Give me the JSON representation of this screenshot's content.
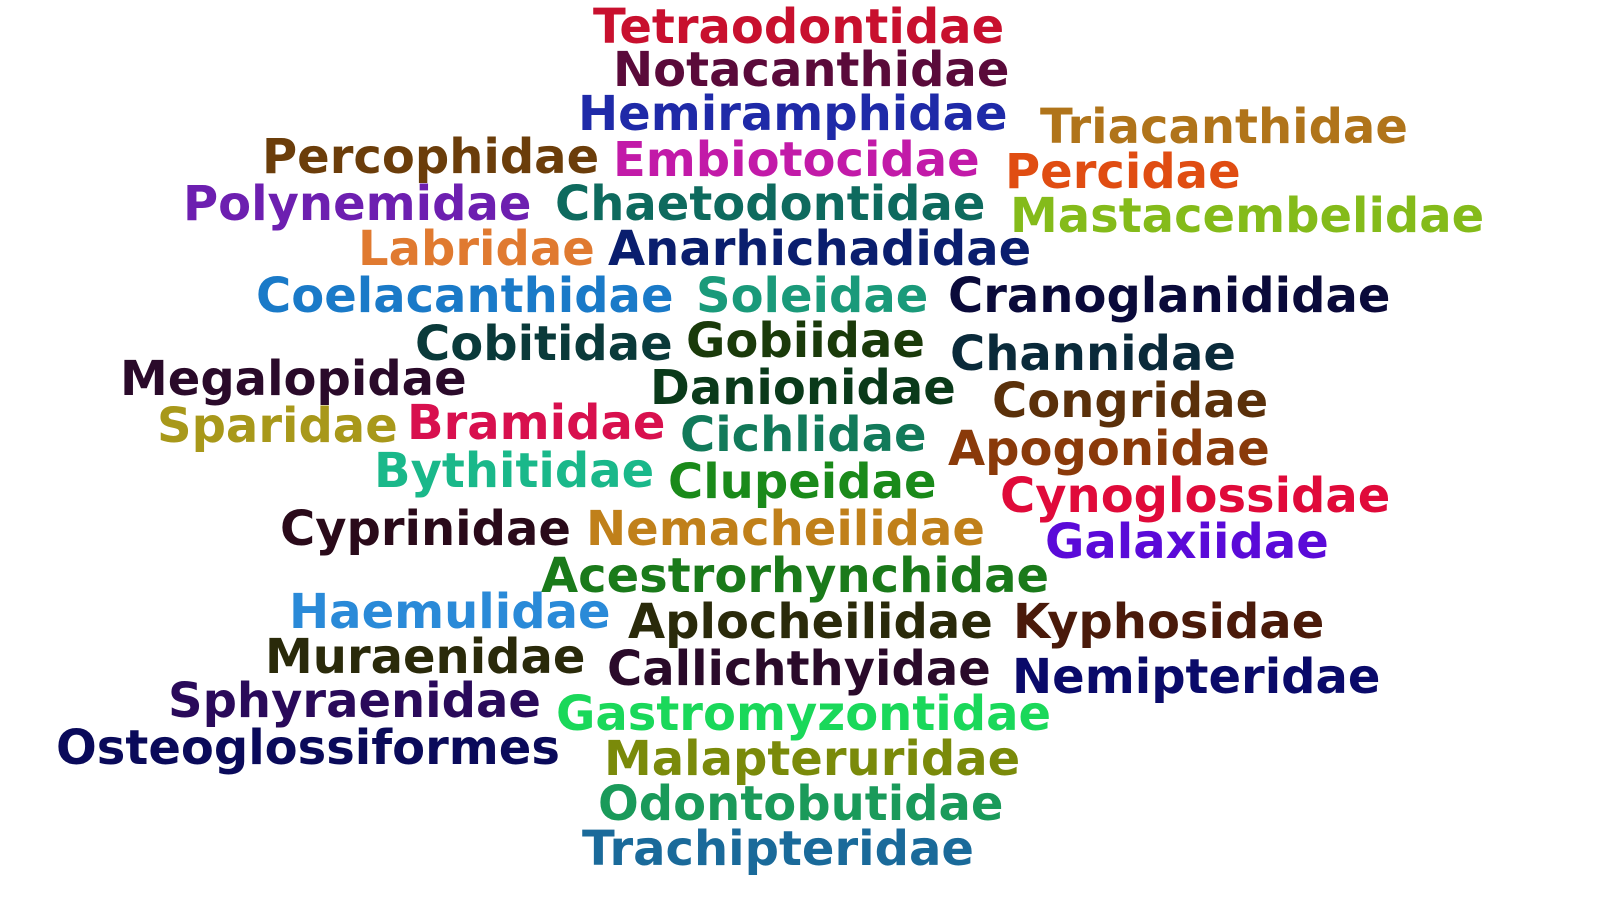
{
  "words": [
    {
      "text": "Tetraodontidae",
      "color": "#c8102e"
    },
    {
      "text": "Notacanthidae",
      "color": "#5a0a3a"
    },
    {
      "text": "Hemiramphidae",
      "color": "#1f2aa8"
    },
    {
      "text": "Triacanthidae",
      "color": "#b0741a"
    },
    {
      "text": "Percophidae",
      "color": "#6b3d0a"
    },
    {
      "text": "Embiotocidae",
      "color": "#c21aa8"
    },
    {
      "text": "Percidae",
      "color": "#e04d12"
    },
    {
      "text": "Polynemidae",
      "color": "#6d1fb0"
    },
    {
      "text": "Chaetodontidae",
      "color": "#0e6a5e"
    },
    {
      "text": "Mastacembelidae",
      "color": "#84bb1a"
    },
    {
      "text": "Labridae",
      "color": "#e07a30"
    },
    {
      "text": "Anarhichadidae",
      "color": "#0a1e6e"
    },
    {
      "text": "Coelacanthidae",
      "color": "#1a7ac8"
    },
    {
      "text": "Soleidae",
      "color": "#1a9a7a"
    },
    {
      "text": "Cranoglanididae",
      "color": "#0a0a3a"
    },
    {
      "text": "Cobitidae",
      "color": "#0a3a3a"
    },
    {
      "text": "Gobiidae",
      "color": "#1a3a0a"
    },
    {
      "text": "Channidae",
      "color": "#0a2a3a"
    },
    {
      "text": "Megalopidae",
      "color": "#2a0a2a"
    },
    {
      "text": "Danionidae",
      "color": "#0a3a1a"
    },
    {
      "text": "Congridae",
      "color": "#5a300a"
    },
    {
      "text": "Sparidae",
      "color": "#a8981a"
    },
    {
      "text": "Bramidae",
      "color": "#d8104e"
    },
    {
      "text": "Cichlidae",
      "color": "#127a5a"
    },
    {
      "text": "Apogonidae",
      "color": "#8a3a0a"
    },
    {
      "text": "Bythitidae",
      "color": "#1ab88a"
    },
    {
      "text": "Clupeidae",
      "color": "#1a8a1a"
    },
    {
      "text": "Cynoglossidae",
      "color": "#e00a3a"
    },
    {
      "text": "Cyprinidae",
      "color": "#2a0a1a"
    },
    {
      "text": "Nemacheilidae",
      "color": "#c0801a"
    },
    {
      "text": "Galaxiidae",
      "color": "#5a0ad8"
    },
    {
      "text": "Acestrorhynchidae",
      "color": "#1a7a1a"
    },
    {
      "text": "Haemulidae",
      "color": "#2a8ad8"
    },
    {
      "text": "Aplocheilidae",
      "color": "#2a2a0a"
    },
    {
      "text": "Kyphosidae",
      "color": "#4a1a0a"
    },
    {
      "text": "Muraenidae",
      "color": "#2a2a0a"
    },
    {
      "text": "Callichthyidae",
      "color": "#2a0a2a"
    },
    {
      "text": "Nemipteridae",
      "color": "#0a0a6a"
    },
    {
      "text": "Sphyraenidae",
      "color": "#2a0a5a"
    },
    {
      "text": "Gastromyzontidae",
      "color": "#1ad85a"
    },
    {
      "text": "Osteoglossiformes",
      "color": "#0a0a5a"
    },
    {
      "text": "Malapteruridae",
      "color": "#7a8a0a"
    },
    {
      "text": "Odontobutidae",
      "color": "#1a9a5a"
    },
    {
      "text": "Trachipteridae",
      "color": "#1a6a9a"
    }
  ]
}
